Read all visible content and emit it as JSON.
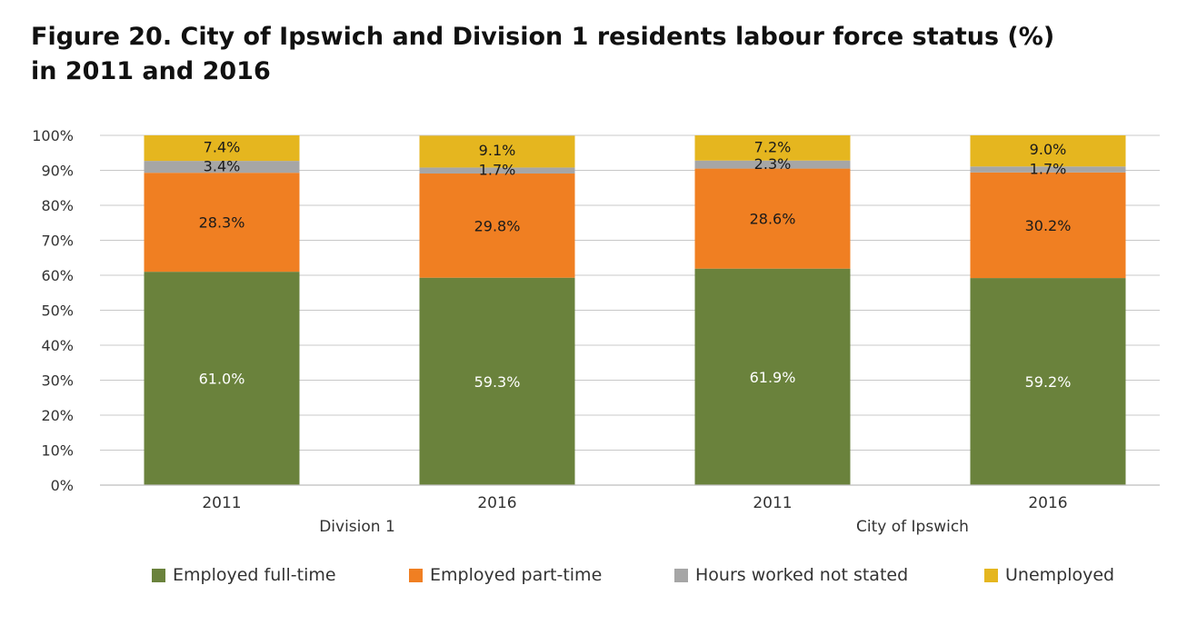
{
  "title_line1": "Figure 20. City of Ipswich and Division 1 residents labour force status (%)",
  "title_line2": "in 2011 and 2016",
  "colors": {
    "full_time": "#6a823c",
    "part_time": "#f07f22",
    "not_stated": "#a6a6a6",
    "unemployed": "#e5b61f",
    "grid": "#c8c8c8"
  },
  "chart_data": {
    "type": "bar",
    "stacked": true,
    "ylim": [
      0,
      100
    ],
    "y_ticks": [
      "0%",
      "10%",
      "20%",
      "30%",
      "40%",
      "50%",
      "60%",
      "70%",
      "80%",
      "90%",
      "100%"
    ],
    "categories": [
      "2011",
      "2016",
      "2011",
      "2016"
    ],
    "groups": [
      {
        "label": "Division 1",
        "categories": [
          "2011",
          "2016"
        ]
      },
      {
        "label": "City of Ipswich",
        "categories": [
          "2011",
          "2016"
        ]
      }
    ],
    "series": [
      {
        "name": "Employed full-time",
        "values": [
          61.0,
          59.3,
          61.9,
          59.2
        ],
        "labels": [
          "61.0%",
          "59.3%",
          "61.9%",
          "59.2%"
        ]
      },
      {
        "name": "Employed part-time",
        "values": [
          28.3,
          29.8,
          28.6,
          30.2
        ],
        "labels": [
          "28.3%",
          "29.8%",
          "28.6%",
          "30.2%"
        ]
      },
      {
        "name": "Hours worked not stated",
        "values": [
          3.4,
          1.7,
          2.3,
          1.7
        ],
        "labels": [
          "3.4%",
          "1.7%",
          "2.3%",
          "1.7%"
        ]
      },
      {
        "name": "Unemployed",
        "values": [
          7.4,
          9.1,
          7.2,
          9.0
        ],
        "labels": [
          "7.4%",
          "9.1%",
          "7.2%",
          "9.0%"
        ]
      }
    ],
    "grid": true,
    "legend": "bottom"
  }
}
